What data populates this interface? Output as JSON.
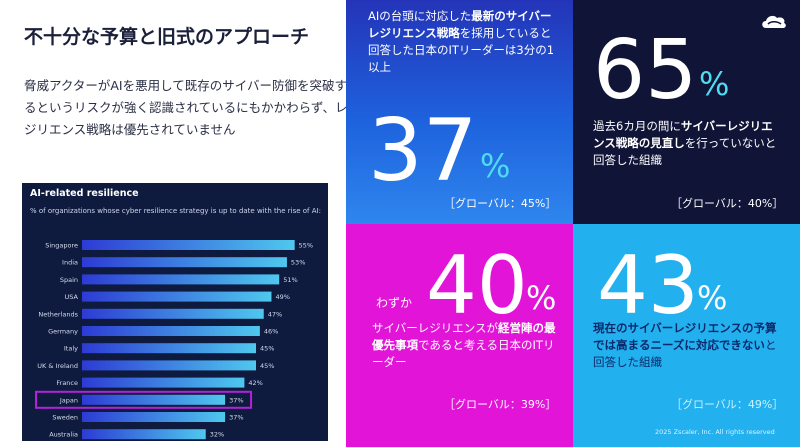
{
  "left": {
    "title": "不十分な予算と旧式のアプローチ",
    "description": "脅威アクターがAIを悪用して既存のサイバー防御を突破するというリスクが強く認識されているにもかかわらず、レジリエンス戦略は優先されていません"
  },
  "chart_data": {
    "type": "bar",
    "orientation": "horizontal",
    "title": "AI-related resilience",
    "subtitle": "% of organizations whose cyber resilience strategy is up to date with the rise of AI:",
    "categories": [
      "Singapore",
      "India",
      "Spain",
      "USA",
      "Netherlands",
      "Germany",
      "Italy",
      "UK & Ireland",
      "France",
      "Japan",
      "Sweden",
      "Australia"
    ],
    "values": [
      55,
      53,
      51,
      49,
      47,
      46,
      45,
      45,
      42,
      37,
      37,
      32
    ],
    "value_labels": [
      "55%",
      "53%",
      "51%",
      "49%",
      "47%",
      "46%",
      "45%",
      "45%",
      "42%",
      "37%",
      "37%",
      "32%"
    ],
    "highlight": "Japan",
    "xlim": [
      0,
      60
    ],
    "colors": {
      "bar_start": "#2d3bd4",
      "bar_end": "#4fc8ee",
      "highlight_box": "#b322d9",
      "background": "#0e1a3e"
    }
  },
  "tiles": {
    "t1": {
      "text_pre": "AIの台頭に対応した",
      "text_bold": "最新のサイバーレジリエンス戦略",
      "text_post": "を採用していると回答した日本のITリーダーは3分の1以上",
      "number": "37",
      "percent": "%",
      "global": "［グローバル：45%］"
    },
    "t2": {
      "number": "65",
      "percent": "%",
      "text_pre": "過去6カ月の間に",
      "text_bold": "サイバーレジリエンス戦略の見直し",
      "text_post": "を行っていないと回答した組織",
      "global": "［グローバル：40%］"
    },
    "t3": {
      "prefix": "わずか",
      "number": "40",
      "percent": "%",
      "text_pre": "サイバーレジリエンスが",
      "text_bold": "経営陣の最優先事項",
      "text_post": "であると考える日本のITリーダー",
      "global": "［グローバル：39%］"
    },
    "t4": {
      "number": "43",
      "percent": "%",
      "text_bold": "現在のサイバーレジリエンスの予算では高まるニーズに対応できない",
      "text_post": "と回答した組織",
      "global": "［グローバル：49%］",
      "footer": "2025 Zscaler, Inc. All rights reserved"
    }
  },
  "logo": {
    "icon": "zscaler-cloud-icon"
  }
}
